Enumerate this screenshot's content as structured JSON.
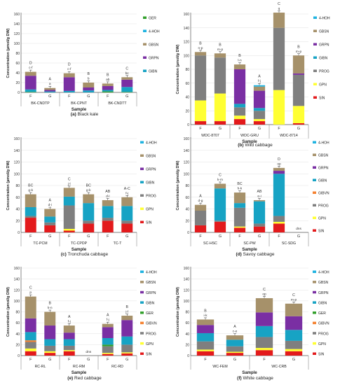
{
  "colors": {
    "SIN": "#e31a1c",
    "GPN": "#ffff33",
    "PROG": "#7f7f7f",
    "GIBVN": "#f58231",
    "GER": "#33a02c",
    "GIBN": "#17a3c4",
    "GRPN": "#7a2fa3",
    "GBSN": "#a6916a",
    "4-HOH": "#1fb3e0"
  },
  "chart_data": [
    {
      "type": "bar",
      "stacked": true,
      "caption_letter": "(a)",
      "caption_name": "Black kale",
      "ylabel": "Concentration (µmol/g DW)",
      "xlabel": "Sample",
      "ylim": [
        0,
        160
      ],
      "yticks": [
        0,
        20,
        40,
        60,
        80,
        100,
        120,
        140,
        160
      ],
      "groups": [
        "BK-CNDTP",
        "BK-CPNT",
        "BK-CNDTT"
      ],
      "categories": [
        "F",
        "G",
        "F",
        "G",
        "F",
        "G"
      ],
      "legend": [
        "GER",
        "4-HOH",
        "GBSN",
        "GRPN",
        "GIBN"
      ],
      "bars": [
        {
          "label": "F",
          "labels": [
            "D",
            "c-f"
          ],
          "segments": {
            "GIBN": 5,
            "GRPN": 28,
            "GBSN": 8,
            "GER": 1
          }
        },
        {
          "label": "G",
          "labels": [
            "A",
            "a"
          ],
          "segments": {
            "GIBN": 2,
            "GRPN": 3,
            "GBSN": 4
          }
        },
        {
          "label": "F",
          "labels": [
            "D",
            "c-f"
          ],
          "segments": {
            "GIBN": 3,
            "GRPN": 28,
            "GBSN": 8
          }
        },
        {
          "label": "G",
          "labels": [
            "B",
            "b"
          ],
          "segments": {
            "GIBN": 4,
            "GRPN": 6,
            "GBSN": 10
          }
        },
        {
          "label": "F",
          "labels": [
            "B",
            "ab"
          ],
          "segments": {
            "GIBN": 3,
            "GRPN": 8,
            "GBSN": 5,
            "GER": 2
          }
        },
        {
          "label": "G",
          "labels": [
            "C",
            "bc"
          ],
          "segments": {
            "GIBN": 10,
            "GRPN": 15,
            "GBSN": 5,
            "GER": 1
          }
        }
      ]
    },
    {
      "type": "bar",
      "stacked": true,
      "caption_letter": "(b)",
      "caption_name": "Wild cabbage",
      "ylabel": "Concentration (µmol/g DW)",
      "xlabel": "Sample",
      "ylim": [
        0,
        160
      ],
      "yticks": [
        0,
        20,
        40,
        60,
        80,
        100,
        120,
        140,
        160
      ],
      "groups": [
        "WDC-8707",
        "WDC-GRU",
        "WDC-8714"
      ],
      "categories": [
        "F",
        "G",
        "F",
        "G",
        "F",
        "G"
      ],
      "legend": [
        "4-HOH",
        "GBSN",
        "GRPN",
        "GIBN",
        "PROG",
        "GPN",
        "SIN"
      ],
      "bars": [
        {
          "label": "F",
          "labels": [
            "B",
            "n-p"
          ],
          "segments": {
            "SIN": 5,
            "GPN": 30,
            "PROG": 65,
            "GBSN": 5
          }
        },
        {
          "label": "G",
          "labels": [
            "B",
            "m-p"
          ],
          "segments": {
            "SIN": 5,
            "GPN": 40,
            "PROG": 52,
            "GBSN": 6
          }
        },
        {
          "label": "F",
          "labels": [
            "B",
            "l-n"
          ],
          "segments": {
            "SIN": 8,
            "GPN": 5,
            "PROG": 12,
            "GIBN": 5,
            "GRPN": 50,
            "GBSN": 7
          }
        },
        {
          "label": "G",
          "labels": [
            "A",
            "f-j"
          ],
          "segments": {
            "SIN": 5,
            "GPN": 3,
            "PROG": 12,
            "GIBN": 4,
            "GRPN": 25,
            "GBSN": 6,
            "4-HOH": 2
          }
        },
        {
          "label": "F",
          "labels": [
            "C",
            "q"
          ],
          "segments": {
            "GPN": 50,
            "PROG": 90,
            "GBSN": 22
          }
        },
        {
          "label": "G",
          "labels": [
            "B",
            "m-p"
          ],
          "segments": {
            "SIN": 2,
            "GPN": 25,
            "PROG": 45,
            "GRPN": 2,
            "GBSN": 26
          }
        }
      ]
    },
    {
      "type": "bar",
      "stacked": true,
      "caption_letter": "(c)",
      "caption_name": "Tronchuda cabbage",
      "ylabel": "Concentration (µmol/g DW)",
      "xlabel": "Sample",
      "ylim": [
        0,
        160
      ],
      "yticks": [
        0,
        20,
        40,
        60,
        80,
        100,
        120,
        140,
        160
      ],
      "groups": [
        "TC-PCM",
        "TC-CPDP",
        "TC-T"
      ],
      "categories": [
        "F",
        "G",
        "F",
        "G",
        "F",
        "G"
      ],
      "legend": [
        "4-HOH",
        "GBSN",
        "GRPN",
        "GIBN",
        "PROG",
        "GPN",
        "SIN"
      ],
      "bars": [
        {
          "label": "F",
          "labels": [
            "BC",
            "g-k"
          ],
          "segments": {
            "SIN": 25,
            "PROG": 3,
            "GIBN": 15,
            "GBSN": 22
          }
        },
        {
          "label": "G",
          "labels": [
            "A",
            "d-i"
          ],
          "segments": {
            "SIN": 12,
            "PROG": 5,
            "GIBN": 10,
            "GBSN": 13
          }
        },
        {
          "label": "F",
          "labels": [
            "C",
            "j-l"
          ],
          "segments": {
            "SIN": 3,
            "GPN": 3,
            "PROG": 40,
            "GIBN": 15,
            "GBSN": 15
          }
        },
        {
          "label": "G",
          "labels": [
            "BC",
            "g-k"
          ],
          "segments": {
            "SIN": 15,
            "PROG": 5,
            "GIBN": 30,
            "GBSN": 15
          }
        },
        {
          "label": "F",
          "labels": [
            "AB",
            "d-i"
          ],
          "segments": {
            "SIN": 20,
            "PROG": 5,
            "GIBN": 20,
            "GBSN": 10
          }
        },
        {
          "label": "G",
          "labels": [
            "A-C",
            "f-j"
          ],
          "segments": {
            "SIN": 15,
            "PROG": 5,
            "GIBN": 25,
            "GBSN": 15
          }
        }
      ]
    },
    {
      "type": "bar",
      "stacked": true,
      "caption_letter": "(d)",
      "caption_name": "Savoy cabbage",
      "ylabel": "Concentration (µmol/g DW)",
      "xlabel": "Sample",
      "ylim": [
        0,
        160
      ],
      "yticks": [
        0,
        20,
        40,
        60,
        80,
        100,
        120,
        140,
        160
      ],
      "groups": [
        "SC-HSC",
        "SC-PW",
        "SC-SDG"
      ],
      "categories": [
        "F",
        "G",
        "F",
        "G",
        "F",
        "G"
      ],
      "legend": [
        "4-HOH",
        "GBSN",
        "GRPN",
        "GIBN",
        "GIBVN",
        "PROG",
        "GPN",
        "SIN"
      ],
      "bars": [
        {
          "label": "F",
          "labels": [
            "A",
            "d-g"
          ],
          "segments": {
            "SIN": 12,
            "PROG": 25,
            "GBSN": 10
          }
        },
        {
          "label": "G",
          "labels": [
            "C",
            "k-m"
          ],
          "segments": {
            "SIN": 18,
            "PROG": 2,
            "GIBN": 55,
            "GBSN": 8
          }
        },
        {
          "label": "F",
          "labels": [
            "BC",
            "h-k"
          ],
          "segments": {
            "SIN": 8,
            "GPN": 2,
            "PROG": 32,
            "GIBN": 8,
            "GBSN": 18
          }
        },
        {
          "label": "G",
          "labels": [
            "AB",
            "e-i"
          ],
          "segments": {
            "SIN": 10,
            "PROG": 5,
            "GIBN": 38,
            "GBSN": 2
          }
        },
        {
          "label": "F",
          "labels": [
            "D",
            "op"
          ],
          "segments": {
            "SIN": 15,
            "GPN": 3,
            "PROG": 10,
            "GIBN": 72,
            "GRPN": 5,
            "GBSN": 5
          }
        },
        {
          "label": "G",
          "labels": [
            "dns"
          ],
          "segments": {}
        }
      ]
    },
    {
      "type": "bar",
      "stacked": true,
      "caption_letter": "(e)",
      "caption_name": "Red cabbage",
      "ylabel": "Concentration (µmol/g DW)",
      "xlabel": "Sample",
      "ylim": [
        0,
        160
      ],
      "yticks": [
        0,
        20,
        40,
        60,
        80,
        100,
        120,
        140,
        160
      ],
      "groups": [
        "RC-RL",
        "RC-RM",
        "RC-RD"
      ],
      "categories": [
        "F",
        "G",
        "F",
        "G",
        "F",
        "G"
      ],
      "legend": [
        "4-HOH",
        "GBSN",
        "GRPN",
        "GIBN",
        "GER",
        "GIBVN",
        "PROG",
        "GPN",
        "SIN"
      ],
      "bars": [
        {
          "label": "F",
          "labels": [
            "C",
            "p"
          ],
          "segments": {
            "SIN": 8,
            "GPN": 5,
            "PROG": 12,
            "GIBVN": 3,
            "GIBN": 15,
            "GRPN": 25,
            "GBSN": 40
          }
        },
        {
          "label": "G",
          "labels": [
            "B",
            "k-n"
          ],
          "segments": {
            "SIN": 5,
            "GPN": 3,
            "PROG": 10,
            "GIBN": 12,
            "GRPN": 25,
            "GBSN": 25
          }
        },
        {
          "label": "F",
          "labels": [
            "A",
            "f-j"
          ],
          "segments": {
            "SIN": 8,
            "GPN": 2,
            "PROG": 8,
            "GIBN": 12,
            "GRPN": 12,
            "GBSN": 13
          }
        },
        {
          "label": "G",
          "labels": [
            "dns"
          ],
          "segments": {}
        },
        {
          "label": "F",
          "labels": [
            "A",
            "f-j"
          ],
          "segments": {
            "SIN": 3,
            "GPN": 2,
            "PROG": 12,
            "GER": 3,
            "GIBN": 12,
            "GRPN": 20,
            "GBSN": 6
          }
        },
        {
          "label": "G",
          "labels": [
            "B",
            "j-l"
          ],
          "segments": {
            "SIN": 4,
            "GPN": 2,
            "PROG": 14,
            "GIBN": 15,
            "GRPN": 30,
            "GBSN": 8
          }
        }
      ]
    },
    {
      "type": "bar",
      "stacked": true,
      "caption_letter": "(f)",
      "caption_name": "White cabbage",
      "ylabel": "Concentration (µmol/g DW)",
      "xlabel": "Sample",
      "ylim": [
        0,
        160
      ],
      "yticks": [
        0,
        20,
        40,
        60,
        80,
        100,
        120,
        140,
        160
      ],
      "groups": [
        "WC-FEM",
        "WC-CRB"
      ],
      "categories": [
        "F",
        "G",
        "F",
        "G"
      ],
      "legend": [
        "4-HOH",
        "GBSN",
        "GRPN",
        "GIBN",
        "GER",
        "GIBVN",
        "PROG",
        "GPN",
        "SIN"
      ],
      "bars": [
        {
          "label": "F",
          "labels": [
            "B",
            "i-k"
          ],
          "segments": {
            "SIN": 8,
            "GPN": 3,
            "PROG": 15,
            "GIBN": 15,
            "GRPN": 15,
            "GBSN": 10
          }
        },
        {
          "label": "G",
          "labels": [
            "A",
            "c-e"
          ],
          "segments": {
            "SIN": 5,
            "GPN": 2,
            "PROG": 10,
            "GIBN": 12,
            "GBSN": 8
          }
        },
        {
          "label": "F",
          "labels": [
            "C",
            "op"
          ],
          "segments": {
            "SIN": 10,
            "GPN": 4,
            "PROG": 20,
            "GIBN": 20,
            "GRPN": 25,
            "GBSN": 26
          }
        },
        {
          "label": "G",
          "labels": [
            "C",
            "m-p"
          ],
          "segments": {
            "SIN": 8,
            "GPN": 4,
            "PROG": 15,
            "GIBN": 20,
            "GRPN": 25,
            "GBSN": 23
          }
        }
      ]
    }
  ]
}
